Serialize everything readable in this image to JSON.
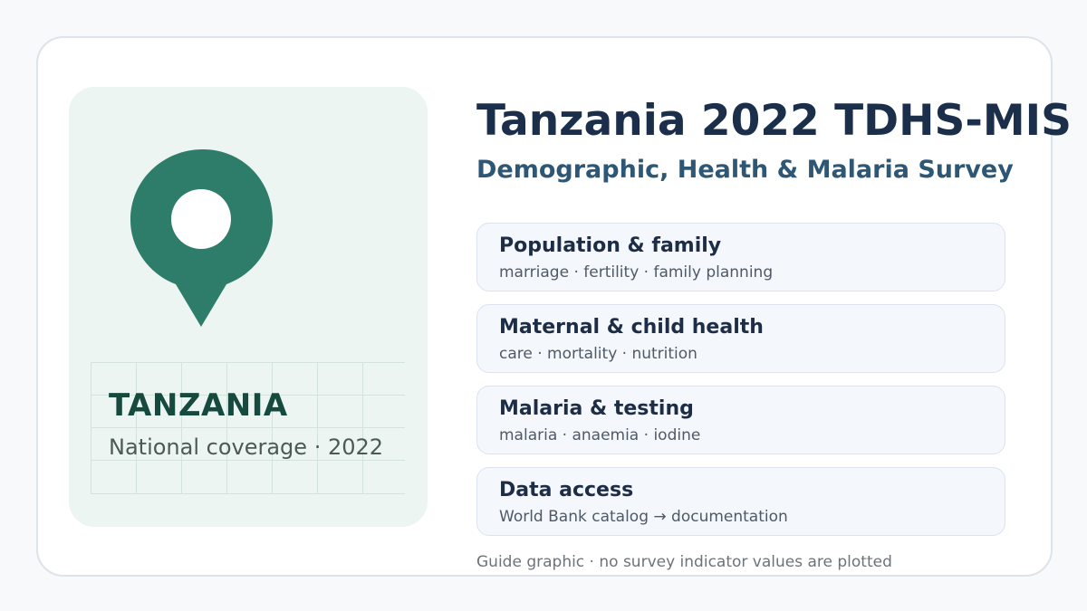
{
  "left_panel": {
    "icon": "map-pin-icon",
    "country": "TANZANIA",
    "coverage": "National coverage · 2022"
  },
  "header": {
    "title": "Tanzania 2022 TDHS-MIS",
    "subtitle": "Demographic, Health & Malaria Survey"
  },
  "topics": [
    {
      "title": "Population & family",
      "desc": "marriage · fertility · family planning"
    },
    {
      "title": "Maternal & child health",
      "desc": "care · mortality · nutrition"
    },
    {
      "title": "Malaria & testing",
      "desc": "malaria · anaemia · iodine"
    },
    {
      "title": "Data access",
      "desc": "World Bank catalog → documentation"
    }
  ],
  "footnote": "Guide graphic · no survey indicator values are plotted",
  "colors": {
    "pin": "#2e7d6b",
    "panel": "#edf5f2",
    "title": "#1b2f4b",
    "subtitle": "#2d5774"
  }
}
